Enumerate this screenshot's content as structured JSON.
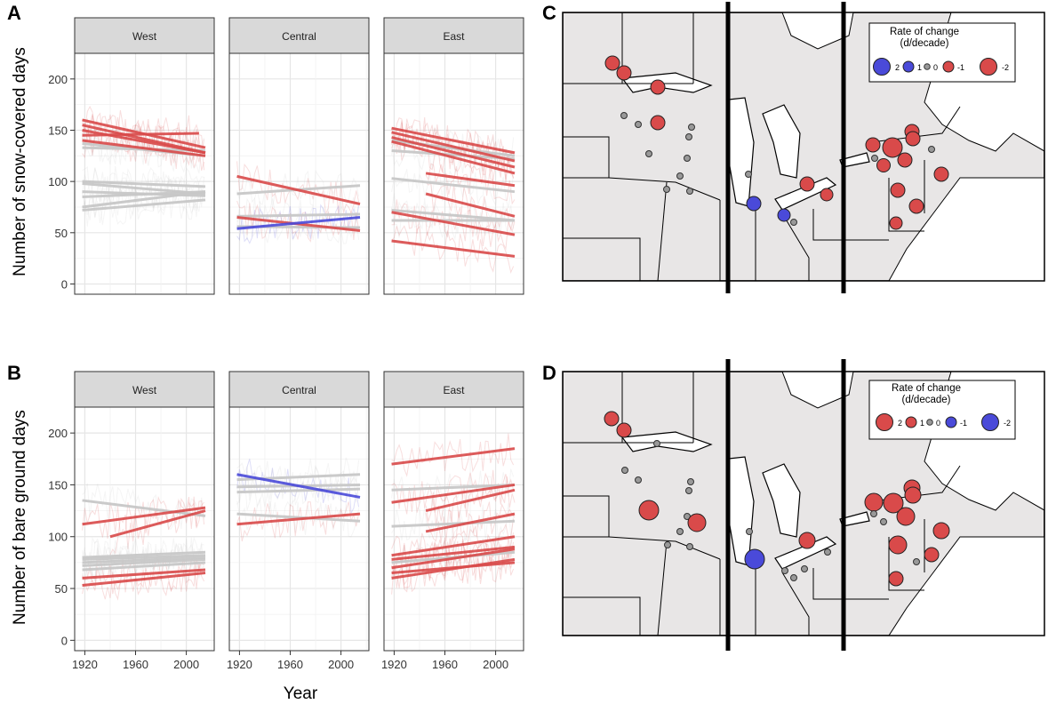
{
  "figure": {
    "x_axis_label": "Year",
    "map_legend_title_1": "Rate of change",
    "map_legend_title_2": "(d/decade)"
  },
  "colors": {
    "negative": "#d94a4a",
    "positive": "#4a4ad9",
    "neutral": "#c8c8c8",
    "strip_fill": "#d9d9d9",
    "map_land": "#e8e6e6"
  },
  "chart_data": [
    {
      "panel": "A",
      "type": "line",
      "ylabel": "Number of snow-covered days",
      "xlabel": "Year",
      "xlim": [
        1912,
        2022
      ],
      "ylim": [
        -10,
        225
      ],
      "xticks": [
        1920,
        1960,
        2000
      ],
      "yticks": [
        0,
        50,
        100,
        150,
        200
      ],
      "facets": [
        {
          "label": "West",
          "trends": [
            {
              "x": [
                1918,
                2015
              ],
              "y": [
                160,
                133
              ],
              "dir": "neg"
            },
            {
              "x": [
                1918,
                2015
              ],
              "y": [
                155,
                128
              ],
              "dir": "neg"
            },
            {
              "x": [
                1918,
                2015
              ],
              "y": [
                150,
                128
              ],
              "dir": "neg"
            },
            {
              "x": [
                1918,
                2010
              ],
              "y": [
                145,
                147
              ],
              "dir": "neg"
            },
            {
              "x": [
                1918,
                2015
              ],
              "y": [
                140,
                125
              ],
              "dir": "neg"
            },
            {
              "x": [
                1918,
                2015
              ],
              "y": [
                137,
                125
              ],
              "dir": "none"
            },
            {
              "x": [
                1918,
                2015
              ],
              "y": [
                133,
                130
              ],
              "dir": "none"
            },
            {
              "x": [
                1918,
                2015
              ],
              "y": [
                100,
                95
              ],
              "dir": "none"
            },
            {
              "x": [
                1918,
                2015
              ],
              "y": [
                98,
                88
              ],
              "dir": "none"
            },
            {
              "x": [
                1918,
                2015
              ],
              "y": [
                90,
                86
              ],
              "dir": "none"
            },
            {
              "x": [
                1918,
                2015
              ],
              "y": [
                85,
                90
              ],
              "dir": "none"
            },
            {
              "x": [
                1918,
                2015
              ],
              "y": [
                75,
                90
              ],
              "dir": "none"
            },
            {
              "x": [
                1918,
                2015
              ],
              "y": [
                72,
                82
              ],
              "dir": "none"
            }
          ]
        },
        {
          "label": "Central",
          "trends": [
            {
              "x": [
                1918,
                2015
              ],
              "y": [
                105,
                78
              ],
              "dir": "neg"
            },
            {
              "x": [
                1918,
                2015
              ],
              "y": [
                88,
                96
              ],
              "dir": "none"
            },
            {
              "x": [
                1918,
                2015
              ],
              "y": [
                66,
                68
              ],
              "dir": "none"
            },
            {
              "x": [
                1918,
                2015
              ],
              "y": [
                65,
                52
              ],
              "dir": "neg"
            },
            {
              "x": [
                1918,
                2015
              ],
              "y": [
                56,
                55
              ],
              "dir": "none"
            },
            {
              "x": [
                1918,
                2015
              ],
              "y": [
                54,
                65
              ],
              "dir": "pos"
            }
          ]
        },
        {
          "label": "East",
          "trends": [
            {
              "x": [
                1918,
                2015
              ],
              "y": [
                152,
                128
              ],
              "dir": "neg"
            },
            {
              "x": [
                1918,
                2015
              ],
              "y": [
                148,
                120
              ],
              "dir": "neg"
            },
            {
              "x": [
                1918,
                2015
              ],
              "y": [
                143,
                114
              ],
              "dir": "neg"
            },
            {
              "x": [
                1918,
                2015
              ],
              "y": [
                139,
                108
              ],
              "dir": "neg"
            },
            {
              "x": [
                1918,
                2015
              ],
              "y": [
                140,
                125
              ],
              "dir": "none"
            },
            {
              "x": [
                1918,
                2015
              ],
              "y": [
                130,
                122
              ],
              "dir": "none"
            },
            {
              "x": [
                1945,
                2015
              ],
              "y": [
                108,
                96
              ],
              "dir": "neg"
            },
            {
              "x": [
                1918,
                2015
              ],
              "y": [
                103,
                90
              ],
              "dir": "none"
            },
            {
              "x": [
                1945,
                2015
              ],
              "y": [
                88,
                66
              ],
              "dir": "neg"
            },
            {
              "x": [
                1918,
                2015
              ],
              "y": [
                72,
                62
              ],
              "dir": "none"
            },
            {
              "x": [
                1918,
                2015
              ],
              "y": [
                70,
                48
              ],
              "dir": "neg"
            },
            {
              "x": [
                1918,
                2015
              ],
              "y": [
                62,
                62
              ],
              "dir": "none"
            },
            {
              "x": [
                1918,
                2015
              ],
              "y": [
                42,
                27
              ],
              "dir": "neg"
            }
          ]
        }
      ]
    },
    {
      "panel": "B",
      "type": "line",
      "ylabel": "Number of bare ground days",
      "xlabel": "Year",
      "xlim": [
        1912,
        2022
      ],
      "ylim": [
        -10,
        225
      ],
      "xticks": [
        1920,
        1960,
        2000
      ],
      "yticks": [
        0,
        50,
        100,
        150,
        200
      ],
      "facets": [
        {
          "label": "West",
          "trends": [
            {
              "x": [
                1918,
                2015
              ],
              "y": [
                135,
                120
              ],
              "dir": "none"
            },
            {
              "x": [
                1918,
                2015
              ],
              "y": [
                112,
                128
              ],
              "dir": "neg"
            },
            {
              "x": [
                1940,
                2015
              ],
              "y": [
                100,
                125
              ],
              "dir": "neg"
            },
            {
              "x": [
                1918,
                2015
              ],
              "y": [
                80,
                85
              ],
              "dir": "none"
            },
            {
              "x": [
                1918,
                2015
              ],
              "y": [
                78,
                82
              ],
              "dir": "none"
            },
            {
              "x": [
                1918,
                2015
              ],
              "y": [
                75,
                80
              ],
              "dir": "none"
            },
            {
              "x": [
                1918,
                2015
              ],
              "y": [
                72,
                78
              ],
              "dir": "none"
            },
            {
              "x": [
                1918,
                2015
              ],
              "y": [
                68,
                75
              ],
              "dir": "none"
            },
            {
              "x": [
                1918,
                2015
              ],
              "y": [
                60,
                68
              ],
              "dir": "neg"
            },
            {
              "x": [
                1918,
                2015
              ],
              "y": [
                53,
                65
              ],
              "dir": "neg"
            }
          ]
        },
        {
          "label": "Central",
          "trends": [
            {
              "x": [
                1918,
                2015
              ],
              "y": [
                160,
                138
              ],
              "dir": "pos"
            },
            {
              "x": [
                1918,
                2015
              ],
              "y": [
                155,
                160
              ],
              "dir": "none"
            },
            {
              "x": [
                1918,
                2015
              ],
              "y": [
                148,
                150
              ],
              "dir": "none"
            },
            {
              "x": [
                1918,
                2015
              ],
              "y": [
                143,
                146
              ],
              "dir": "none"
            },
            {
              "x": [
                1918,
                2015
              ],
              "y": [
                122,
                115
              ],
              "dir": "none"
            },
            {
              "x": [
                1918,
                2015
              ],
              "y": [
                112,
                122
              ],
              "dir": "neg"
            }
          ]
        },
        {
          "label": "East",
          "trends": [
            {
              "x": [
                1918,
                2015
              ],
              "y": [
                170,
                185
              ],
              "dir": "neg"
            },
            {
              "x": [
                1918,
                2015
              ],
              "y": [
                145,
                150
              ],
              "dir": "none"
            },
            {
              "x": [
                1918,
                2015
              ],
              "y": [
                133,
                150
              ],
              "dir": "neg"
            },
            {
              "x": [
                1945,
                2015
              ],
              "y": [
                125,
                145
              ],
              "dir": "neg"
            },
            {
              "x": [
                1918,
                2015
              ],
              "y": [
                110,
                115
              ],
              "dir": "none"
            },
            {
              "x": [
                1945,
                2015
              ],
              "y": [
                105,
                122
              ],
              "dir": "neg"
            },
            {
              "x": [
                1918,
                2015
              ],
              "y": [
                82,
                100
              ],
              "dir": "neg"
            },
            {
              "x": [
                1918,
                2015
              ],
              "y": [
                78,
                90
              ],
              "dir": "neg"
            },
            {
              "x": [
                1918,
                2015
              ],
              "y": [
                75,
                85
              ],
              "dir": "none"
            },
            {
              "x": [
                1918,
                2015
              ],
              "y": [
                70,
                88
              ],
              "dir": "neg"
            },
            {
              "x": [
                1918,
                2015
              ],
              "y": [
                65,
                75
              ],
              "dir": "neg"
            },
            {
              "x": [
                1918,
                2015
              ],
              "y": [
                60,
                78
              ],
              "dir": "neg"
            }
          ]
        }
      ]
    }
  ],
  "maps": [
    {
      "panel": "C",
      "legend": [
        {
          "label": "2",
          "color": "pos",
          "size": "large"
        },
        {
          "label": "1",
          "color": "pos",
          "size": "medium"
        },
        {
          "label": "0",
          "color": "none",
          "size": "small"
        },
        {
          "label": "-1",
          "color": "neg",
          "size": "medium"
        },
        {
          "label": "-2",
          "color": "neg",
          "size": "large"
        }
      ]
    },
    {
      "panel": "D",
      "legend": [
        {
          "label": "2",
          "color": "neg",
          "size": "large"
        },
        {
          "label": "1",
          "color": "neg",
          "size": "medium"
        },
        {
          "label": "0",
          "color": "none",
          "size": "small"
        },
        {
          "label": "-1",
          "color": "pos",
          "size": "medium"
        },
        {
          "label": "-2",
          "color": "pos",
          "size": "large"
        }
      ]
    }
  ]
}
